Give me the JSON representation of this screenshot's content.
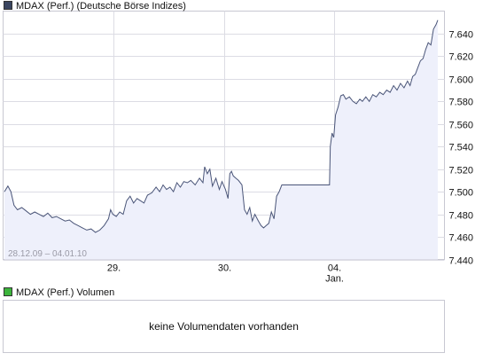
{
  "price_legend": {
    "label": "MDAX (Perf.) (Deutsche Börse Indizes)",
    "color": "#3a4560"
  },
  "volume_legend": {
    "label": "MDAX (Perf.) Volumen",
    "color": "#3cb43c"
  },
  "volume_panel": {
    "message": "keine Volumendaten vorhanden"
  },
  "date_range": "28.12.09 – 04.01.10",
  "chart_data": {
    "type": "area",
    "title": "MDAX (Perf.) (Deutsche Börse Indizes)",
    "xlabel": "",
    "ylabel": "",
    "ylim": [
      7440,
      7660
    ],
    "y_ticks": [
      "7.440",
      "7.460",
      "7.480",
      "7.500",
      "7.520",
      "7.540",
      "7.560",
      "7.580",
      "7.600",
      "7.620",
      "7.640"
    ],
    "x_ticks": [
      {
        "label": "29.",
        "sublabel": "",
        "t": 0.25
      },
      {
        "label": "30.",
        "sublabel": "",
        "t": 0.5
      },
      {
        "label": "04.",
        "sublabel": "Jan.",
        "t": 0.75
      }
    ],
    "grid": true,
    "line_color": "#4a5578",
    "fill_color": "#eef0fb",
    "series": [
      {
        "values": [
          [
            0.0,
            7500
          ],
          [
            0.008,
            7505
          ],
          [
            0.015,
            7500
          ],
          [
            0.022,
            7488
          ],
          [
            0.03,
            7484
          ],
          [
            0.04,
            7486
          ],
          [
            0.05,
            7483
          ],
          [
            0.06,
            7480
          ],
          [
            0.07,
            7482
          ],
          [
            0.08,
            7480
          ],
          [
            0.09,
            7478
          ],
          [
            0.1,
            7481
          ],
          [
            0.11,
            7477
          ],
          [
            0.12,
            7478
          ],
          [
            0.13,
            7476
          ],
          [
            0.14,
            7474
          ],
          [
            0.15,
            7475
          ],
          [
            0.16,
            7472
          ],
          [
            0.17,
            7470
          ],
          [
            0.18,
            7468
          ],
          [
            0.19,
            7466
          ],
          [
            0.2,
            7467
          ],
          [
            0.21,
            7464
          ],
          [
            0.22,
            7466
          ],
          [
            0.23,
            7470
          ],
          [
            0.24,
            7476
          ],
          [
            0.245,
            7484
          ],
          [
            0.25,
            7480
          ],
          [
            0.258,
            7478
          ],
          [
            0.266,
            7482
          ],
          [
            0.274,
            7480
          ],
          [
            0.282,
            7492
          ],
          [
            0.29,
            7496
          ],
          [
            0.298,
            7490
          ],
          [
            0.306,
            7494
          ],
          [
            0.314,
            7492
          ],
          [
            0.322,
            7490
          ],
          [
            0.33,
            7497
          ],
          [
            0.34,
            7499
          ],
          [
            0.35,
            7504
          ],
          [
            0.358,
            7500
          ],
          [
            0.366,
            7506
          ],
          [
            0.374,
            7502
          ],
          [
            0.382,
            7504
          ],
          [
            0.39,
            7500
          ],
          [
            0.398,
            7508
          ],
          [
            0.406,
            7504
          ],
          [
            0.414,
            7509
          ],
          [
            0.422,
            7508
          ],
          [
            0.43,
            7510
          ],
          [
            0.44,
            7506
          ],
          [
            0.45,
            7512
          ],
          [
            0.458,
            7508
          ],
          [
            0.462,
            7522
          ],
          [
            0.468,
            7516
          ],
          [
            0.474,
            7520
          ],
          [
            0.48,
            7505
          ],
          [
            0.488,
            7512
          ],
          [
            0.496,
            7502
          ],
          [
            0.502,
            7509
          ],
          [
            0.51,
            7502
          ],
          [
            0.516,
            7494
          ],
          [
            0.52,
            7516
          ],
          [
            0.524,
            7518
          ],
          [
            0.528,
            7514
          ],
          [
            0.534,
            7512
          ],
          [
            0.54,
            7510
          ],
          [
            0.548,
            7506
          ],
          [
            0.554,
            7484
          ],
          [
            0.56,
            7480
          ],
          [
            0.566,
            7486
          ],
          [
            0.572,
            7474
          ],
          [
            0.578,
            7480
          ],
          [
            0.586,
            7474
          ],
          [
            0.592,
            7470
          ],
          [
            0.598,
            7468
          ],
          [
            0.604,
            7470
          ],
          [
            0.61,
            7472
          ],
          [
            0.616,
            7482
          ],
          [
            0.622,
            7476
          ],
          [
            0.628,
            7496
          ],
          [
            0.634,
            7500
          ],
          [
            0.64,
            7506
          ],
          [
            0.646,
            7506
          ],
          [
            0.7,
            7506
          ],
          [
            0.75,
            7506
          ],
          [
            0.752,
            7540
          ],
          [
            0.756,
            7552
          ],
          [
            0.76,
            7548
          ],
          [
            0.764,
            7568
          ],
          [
            0.77,
            7575
          ],
          [
            0.776,
            7585
          ],
          [
            0.782,
            7586
          ],
          [
            0.788,
            7582
          ],
          [
            0.796,
            7584
          ],
          [
            0.804,
            7580
          ],
          [
            0.812,
            7578
          ],
          [
            0.82,
            7582
          ],
          [
            0.826,
            7580
          ],
          [
            0.834,
            7584
          ],
          [
            0.842,
            7580
          ],
          [
            0.85,
            7586
          ],
          [
            0.858,
            7584
          ],
          [
            0.866,
            7588
          ],
          [
            0.874,
            7586
          ],
          [
            0.882,
            7590
          ],
          [
            0.89,
            7588
          ],
          [
            0.898,
            7594
          ],
          [
            0.906,
            7590
          ],
          [
            0.914,
            7596
          ],
          [
            0.922,
            7592
          ],
          [
            0.93,
            7598
          ],
          [
            0.936,
            7594
          ],
          [
            0.942,
            7602
          ],
          [
            0.948,
            7604
          ],
          [
            0.954,
            7610
          ],
          [
            0.96,
            7616
          ],
          [
            0.966,
            7618
          ],
          [
            0.972,
            7626
          ],
          [
            0.978,
            7632
          ],
          [
            0.984,
            7630
          ],
          [
            0.99,
            7644
          ],
          [
            0.996,
            7648
          ],
          [
            1.0,
            7652
          ]
        ]
      }
    ]
  }
}
